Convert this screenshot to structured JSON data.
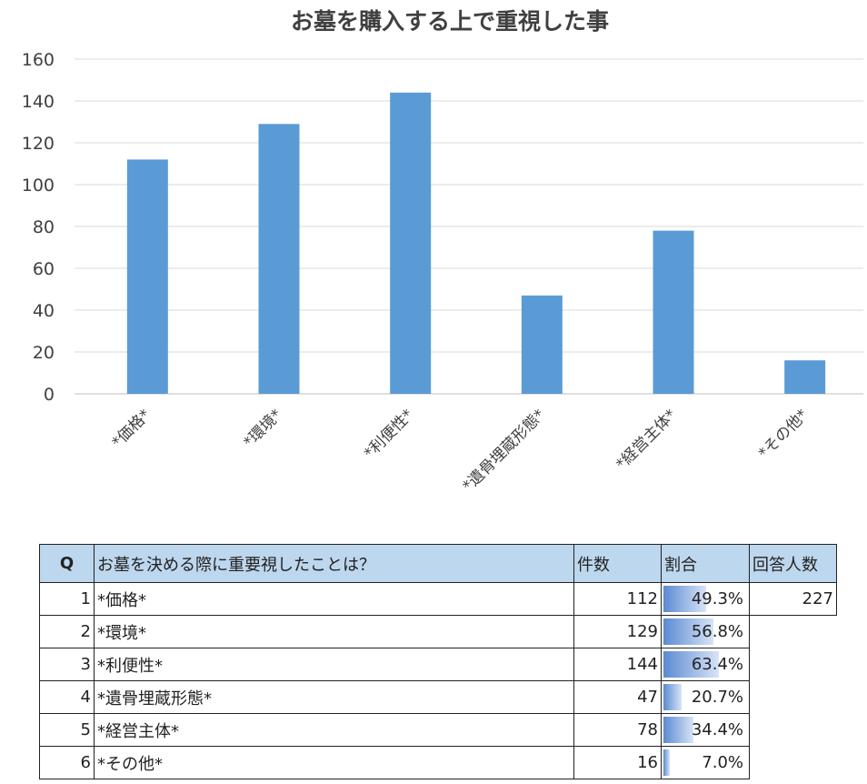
{
  "chart_data": {
    "type": "bar",
    "title": "お墓を購入する上で重視した事",
    "categories": [
      "*価格*",
      "*環境*",
      "*利便性*",
      "*遺骨埋蔵形態*",
      "*経営主体*",
      "*その他*"
    ],
    "values": [
      112,
      129,
      144,
      47,
      78,
      16
    ],
    "ylim": [
      0,
      160
    ],
    "yticks": [
      0,
      20,
      40,
      60,
      80,
      100,
      120,
      140,
      160
    ],
    "grid": true,
    "bar_color": "#5b9bd5",
    "xlabel": "",
    "ylabel": ""
  },
  "table": {
    "headers": {
      "q": "Q",
      "question": "お墓を決める際に重要視したことは？",
      "count": "件数",
      "ratio": "割合",
      "respondents": "回答人数"
    },
    "respondents_value": "227",
    "rows": [
      {
        "no": "1",
        "label": "*価格*",
        "count": "112",
        "ratio": "49.3%",
        "ratio_value": 0.493
      },
      {
        "no": "2",
        "label": "*環境*",
        "count": "129",
        "ratio": "56.8%",
        "ratio_value": 0.568
      },
      {
        "no": "3",
        "label": "*利便性*",
        "count": "144",
        "ratio": "63.4%",
        "ratio_value": 0.634
      },
      {
        "no": "4",
        "label": "*遺骨埋蔵形態*",
        "count": "47",
        "ratio": "20.7%",
        "ratio_value": 0.207
      },
      {
        "no": "5",
        "label": "*経営主体*",
        "count": "78",
        "ratio": "34.4%",
        "ratio_value": 0.344
      },
      {
        "no": "6",
        "label": "*その他*",
        "count": "16",
        "ratio": "7.0%",
        "ratio_value": 0.07
      }
    ],
    "ratio_bar_color": "#5b8ad2",
    "header_color": "#bdd7ee"
  }
}
